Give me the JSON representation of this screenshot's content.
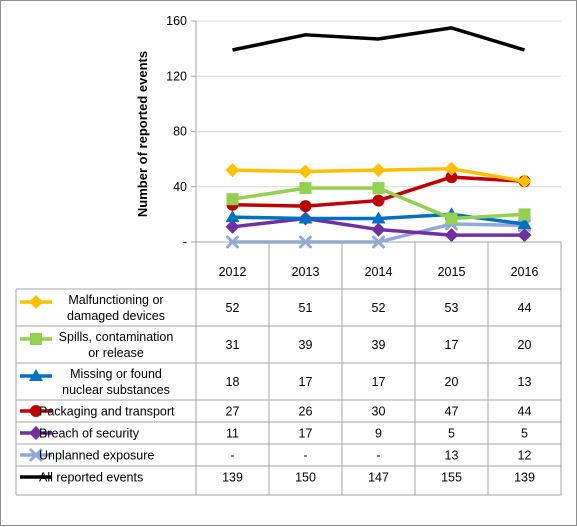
{
  "chart_data": {
    "type": "line",
    "title": "",
    "xlabel": "",
    "ylabel": "Number of reported events",
    "ylim": [
      0,
      160
    ],
    "yticks": [
      "-",
      "40",
      "80",
      "120",
      "160"
    ],
    "grid": true,
    "legend": "data-table-below",
    "categories": [
      "2012",
      "2013",
      "2014",
      "2015",
      "2016"
    ],
    "series": [
      {
        "name": "Malfunctioning or damaged devices",
        "label_lines": [
          "Malfunctioning or",
          "damaged devices"
        ],
        "values": [
          52,
          51,
          52,
          53,
          44
        ],
        "table": [
          "52",
          "51",
          "52",
          "53",
          "44"
        ],
        "color": "#FFC000",
        "marker": "diamond"
      },
      {
        "name": "Spills, contamination or release",
        "label_lines": [
          "Spills, contamination",
          "or release"
        ],
        "values": [
          31,
          39,
          39,
          17,
          20
        ],
        "table": [
          "31",
          "39",
          "39",
          "17",
          "20"
        ],
        "color": "#92D050",
        "marker": "square"
      },
      {
        "name": "Missing or found nuclear substances",
        "label_lines": [
          "Missing or found",
          "nuclear substances"
        ],
        "values": [
          18,
          17,
          17,
          20,
          13
        ],
        "table": [
          "18",
          "17",
          "17",
          "20",
          "13"
        ],
        "color": "#0070C0",
        "marker": "triangle"
      },
      {
        "name": "Packaging and transport",
        "label_lines": [
          "Packaging and transport"
        ],
        "values": [
          27,
          26,
          30,
          47,
          44
        ],
        "table": [
          "27",
          "26",
          "30",
          "47",
          "44"
        ],
        "color": "#C00000",
        "marker": "circle"
      },
      {
        "name": "Breach of security",
        "label_lines": [
          "Breach of security"
        ],
        "values": [
          11,
          17,
          9,
          5,
          5
        ],
        "table": [
          "11",
          "17",
          "9",
          "5",
          "5"
        ],
        "color": "#7030A0",
        "marker": "diamond"
      },
      {
        "name": "Unplanned exposure",
        "label_lines": [
          "Unplanned exposure"
        ],
        "values": [
          0,
          0,
          0,
          13,
          12
        ],
        "table": [
          "-",
          "-",
          "-",
          "13",
          "12"
        ],
        "color": "#8EA9DB",
        "marker": "x"
      },
      {
        "name": "All reported events",
        "label_lines": [
          "All reported events"
        ],
        "values": [
          139,
          150,
          147,
          155,
          139
        ],
        "table": [
          "139",
          "150",
          "147",
          "155",
          "139"
        ],
        "color": "#000000",
        "marker": "none"
      }
    ]
  }
}
